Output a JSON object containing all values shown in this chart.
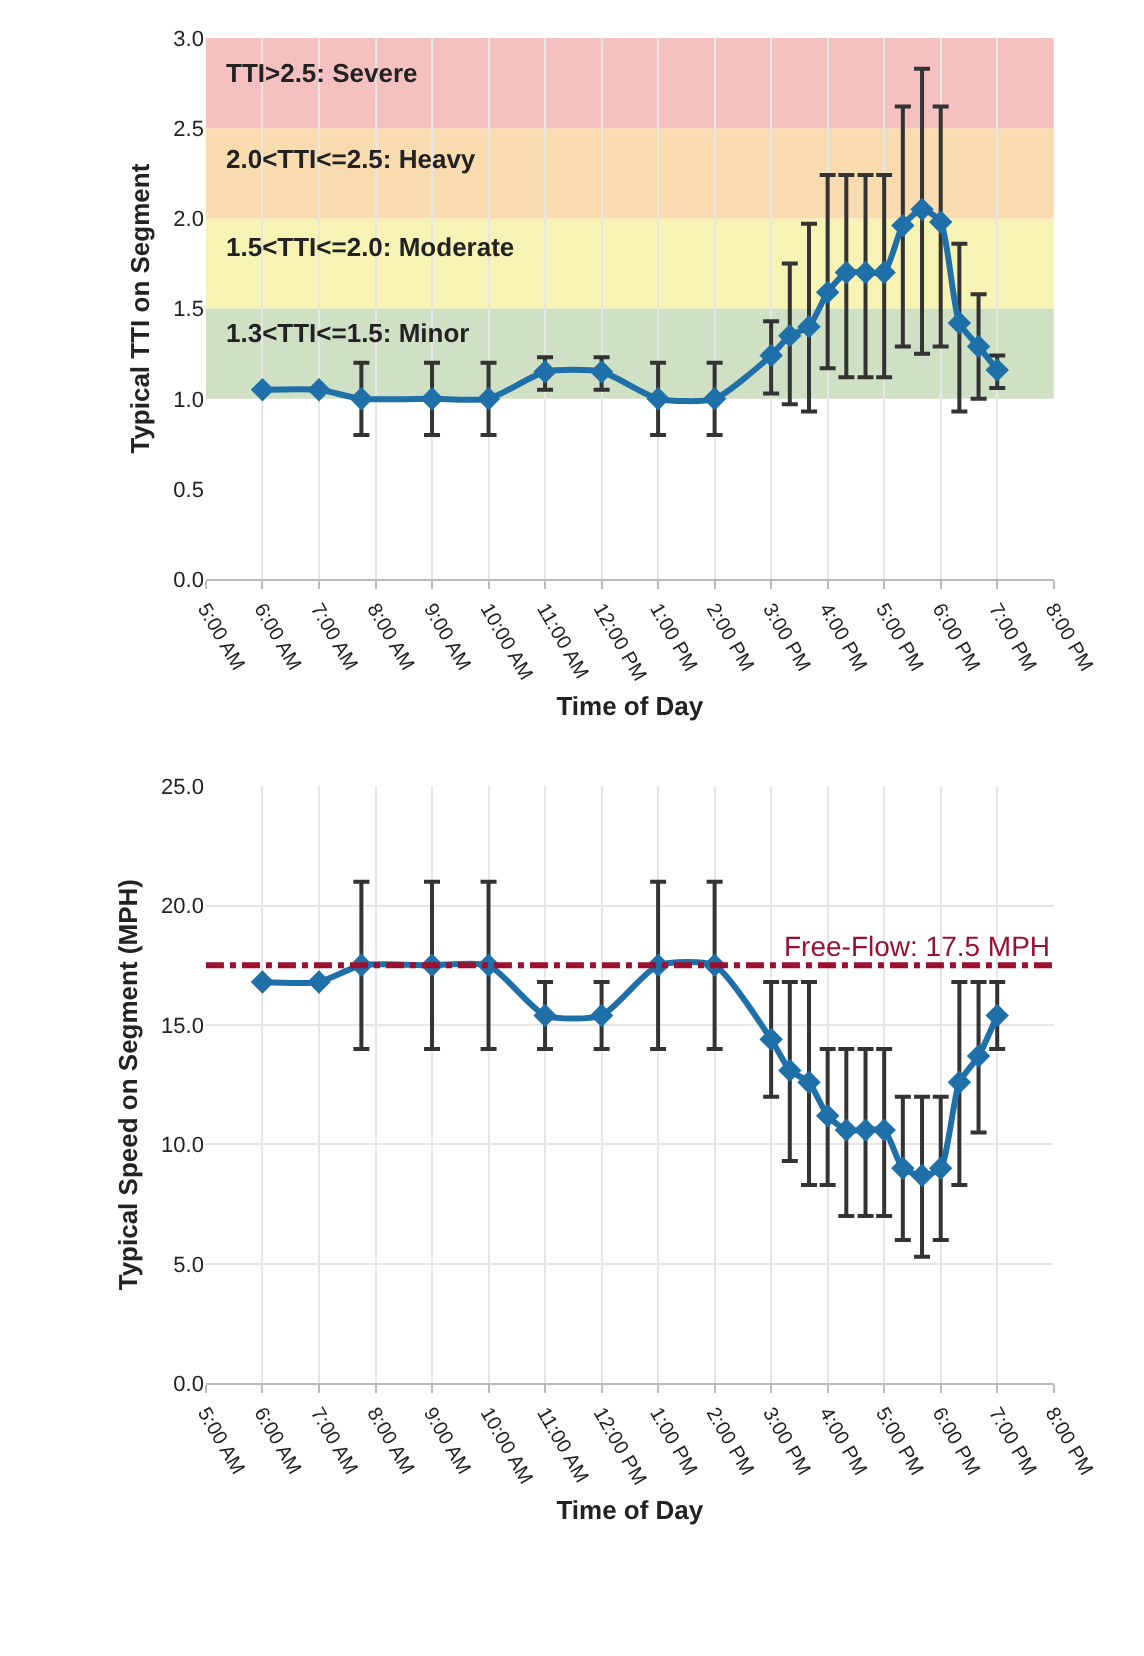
{
  "chart_data": [
    {
      "type": "line",
      "xlabel": "Time of Day",
      "ylabel": "Typical TTI on Segment",
      "x": [
        6,
        7,
        7.75,
        9,
        10,
        11,
        12,
        13,
        14,
        15,
        15.33,
        15.67,
        16,
        16.33,
        16.67,
        17,
        17.33,
        17.67,
        18,
        18.33,
        18.67,
        19
      ],
      "series": [
        {
          "color": "#1f6fa8",
          "values": [
            1.05,
            1.05,
            1.0,
            1.0,
            1.0,
            1.15,
            1.15,
            1.0,
            1.0,
            1.24,
            1.35,
            1.4,
            1.59,
            1.7,
            1.7,
            1.7,
            1.96,
            2.05,
            1.98,
            1.42,
            1.29,
            1.16
          ],
          "errors": [
            null,
            null,
            [
              0.8,
              1.2
            ],
            [
              0.8,
              1.2
            ],
            [
              0.8,
              1.2
            ],
            [
              1.05,
              1.23
            ],
            [
              1.05,
              1.23
            ],
            [
              0.8,
              1.2
            ],
            [
              0.8,
              1.2
            ],
            [
              1.03,
              1.43
            ],
            [
              0.97,
              1.75
            ],
            [
              0.93,
              1.97
            ],
            [
              1.17,
              2.24
            ],
            [
              1.12,
              2.24
            ],
            [
              1.12,
              2.24
            ],
            [
              1.12,
              2.24
            ],
            [
              1.29,
              2.62
            ],
            [
              1.25,
              2.83
            ],
            [
              1.29,
              2.62
            ],
            [
              0.93,
              1.86
            ],
            [
              1.0,
              1.58
            ],
            [
              1.06,
              1.24
            ]
          ]
        }
      ],
      "xlim": [
        5,
        20
      ],
      "xticks": [
        {
          "value": 5,
          "label": "5:00 AM"
        },
        {
          "value": 6,
          "label": "6:00 AM"
        },
        {
          "value": 7,
          "label": "7:00 AM"
        },
        {
          "value": 8,
          "label": "8:00 AM"
        },
        {
          "value": 9,
          "label": "9:00 AM"
        },
        {
          "value": 10,
          "label": "10:00 AM"
        },
        {
          "value": 11,
          "label": "11:00 AM"
        },
        {
          "value": 12,
          "label": "12:00 PM"
        },
        {
          "value": 13,
          "label": "1:00 PM"
        },
        {
          "value": 14,
          "label": "2:00 PM"
        },
        {
          "value": 15,
          "label": "3:00 PM"
        },
        {
          "value": 16,
          "label": "4:00 PM"
        },
        {
          "value": 17,
          "label": "5:00 PM"
        },
        {
          "value": 18,
          "label": "6:00 PM"
        },
        {
          "value": 19,
          "label": "7:00 PM"
        },
        {
          "value": 20,
          "label": "8:00 PM"
        }
      ],
      "ylim": [
        0,
        3
      ],
      "yticks": [
        {
          "value": 0,
          "label": "0.0"
        },
        {
          "value": 0.5,
          "label": "0.5"
        },
        {
          "value": 1,
          "label": "1.0"
        },
        {
          "value": 1.5,
          "label": "1.5"
        },
        {
          "value": 2,
          "label": "2.0"
        },
        {
          "value": 2.5,
          "label": "2.5"
        },
        {
          "value": 3,
          "label": "3.0"
        }
      ],
      "bands": [
        {
          "axis": "y",
          "from": 1.0,
          "to": 1.5,
          "color": "#cfe0c4"
        },
        {
          "axis": "y",
          "from": 1.5,
          "to": 2.0,
          "color": "#f7f3b4"
        },
        {
          "axis": "y",
          "from": 2.0,
          "to": 2.5,
          "color": "#f8dcb0"
        },
        {
          "axis": "y",
          "from": 2.5,
          "to": 3.0,
          "color": "#f5c0c0"
        }
      ],
      "annotations": [
        "TTI>2.5: Severe",
        "2.0<TTI<=2.5: Heavy",
        "1.5<TTI<=2.0: Moderate",
        "1.3<TTI<=1.5: Minor"
      ],
      "grid": "x",
      "marker": "diamond",
      "line_style": "solid"
    },
    {
      "type": "line",
      "xlabel": "Time of Day",
      "ylabel": "Typical Speed on Segment (MPH)",
      "x": [
        6,
        7,
        7.75,
        9,
        10,
        11,
        12,
        13,
        14,
        15,
        15.33,
        15.67,
        16,
        16.33,
        16.67,
        17,
        17.33,
        17.67,
        18,
        18.33,
        18.67,
        19
      ],
      "series": [
        {
          "color": "#1f6fa8",
          "values": [
            16.8,
            16.8,
            17.5,
            17.5,
            17.5,
            15.4,
            15.4,
            17.5,
            17.5,
            14.4,
            13.1,
            12.6,
            11.2,
            10.6,
            10.6,
            10.6,
            9.0,
            8.7,
            9.0,
            12.6,
            13.7,
            15.4
          ],
          "errors": [
            null,
            null,
            [
              14,
              21
            ],
            [
              14,
              21
            ],
            [
              14,
              21
            ],
            [
              14,
              16.8
            ],
            [
              14,
              16.8
            ],
            [
              14,
              21
            ],
            [
              14,
              21
            ],
            [
              12,
              16.8
            ],
            [
              9.3,
              16.8
            ],
            [
              8.3,
              16.8
            ],
            [
              8.3,
              14
            ],
            [
              7,
              14
            ],
            [
              7,
              14
            ],
            [
              7,
              14
            ],
            [
              6,
              12
            ],
            [
              5.3,
              12
            ],
            [
              6,
              12
            ],
            [
              8.3,
              16.8
            ],
            [
              10.5,
              16.8
            ],
            [
              14,
              16.8
            ]
          ]
        }
      ],
      "xlim": [
        5,
        20
      ],
      "xticks": [
        {
          "value": 5,
          "label": "5:00 AM"
        },
        {
          "value": 6,
          "label": "6:00 AM"
        },
        {
          "value": 7,
          "label": "7:00 AM"
        },
        {
          "value": 8,
          "label": "8:00 AM"
        },
        {
          "value": 9,
          "label": "9:00 AM"
        },
        {
          "value": 10,
          "label": "10:00 AM"
        },
        {
          "value": 11,
          "label": "11:00 AM"
        },
        {
          "value": 12,
          "label": "12:00 PM"
        },
        {
          "value": 13,
          "label": "1:00 PM"
        },
        {
          "value": 14,
          "label": "2:00 PM"
        },
        {
          "value": 15,
          "label": "3:00 PM"
        },
        {
          "value": 16,
          "label": "4:00 PM"
        },
        {
          "value": 17,
          "label": "5:00 PM"
        },
        {
          "value": 18,
          "label": "6:00 PM"
        },
        {
          "value": 19,
          "label": "7:00 PM"
        },
        {
          "value": 20,
          "label": "8:00 PM"
        }
      ],
      "ylim": [
        0,
        25
      ],
      "yticks": [
        {
          "value": 0,
          "label": "0.0"
        },
        {
          "value": 5,
          "label": "5.0"
        },
        {
          "value": 10,
          "label": "10.0"
        },
        {
          "value": 15,
          "label": "15.0"
        },
        {
          "value": 20,
          "label": "20.0"
        },
        {
          "value": 25,
          "label": "25.0"
        }
      ],
      "ref_lines": [
        {
          "axis": "y",
          "value": 17.5,
          "label": "Free-Flow: 17.5 MPH",
          "color": "#9b1030",
          "line_style": "dashdot"
        }
      ],
      "grid": true,
      "marker": "diamond",
      "line_style": "solid"
    }
  ]
}
